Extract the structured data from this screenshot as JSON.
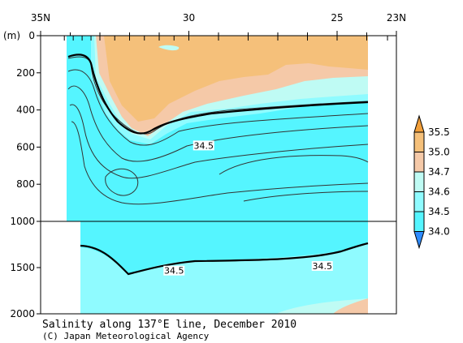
{
  "chart_data": {
    "type": "heatmap",
    "title": "Salinity along 137°E line, December 2010",
    "credit": "(C) Japan Meteorological Agency",
    "x_axis": {
      "range_deg_n": [
        35,
        23
      ],
      "tick_labels": [
        {
          "value": 35,
          "label": "35N"
        },
        {
          "value": 30,
          "label": "30"
        },
        {
          "value": 25,
          "label": "25"
        },
        {
          "value": 23,
          "label": "23N"
        }
      ]
    },
    "y_axis": {
      "unit_label": "(m)",
      "upper_panel_range_m": [
        0,
        1000
      ],
      "lower_panel_range_m": [
        1000,
        2000
      ],
      "tick_labels": [
        {
          "value": 0,
          "label": "0"
        },
        {
          "value": 200,
          "label": "200"
        },
        {
          "value": 400,
          "label": "400"
        },
        {
          "value": 600,
          "label": "600"
        },
        {
          "value": 800,
          "label": "800"
        },
        {
          "value": 1000,
          "label": "1000"
        },
        {
          "value": 1500,
          "label": "1500"
        },
        {
          "value": 2000,
          "label": "2000"
        }
      ]
    },
    "colorbar": {
      "levels": [
        "34.0",
        "34.5",
        "34.6",
        "34.7",
        "35.0",
        "35.5"
      ],
      "bands": [
        {
          "range": "< 34.0",
          "color": "#2f8cff"
        },
        {
          "range": "34.0-34.5",
          "color": "#55f5ff"
        },
        {
          "range": "34.5-34.6",
          "color": "#8ffbff"
        },
        {
          "range": "34.6-34.7",
          "color": "#bffbf4"
        },
        {
          "range": "34.7-35.0",
          "color": "#f5c9a8"
        },
        {
          "range": "35.0-35.5",
          "color": "#f5c07a"
        },
        {
          "range": "> 35.5",
          "color": "#f29f3a"
        }
      ]
    },
    "contour_labels": [
      {
        "value": "34.5",
        "lat": 29.5,
        "depth_m": 600
      },
      {
        "value": "34.5",
        "lat": 30.5,
        "depth_m": 1550
      },
      {
        "value": "34.5",
        "lat": 25.5,
        "depth_m": 1500
      }
    ],
    "station_lats": [
      34.2,
      33.9,
      33.6,
      33.3,
      33.0,
      32.5,
      32.0,
      31.5,
      31.0,
      30.5,
      30.0,
      29.0,
      28.0,
      27.0,
      26.0,
      25.0,
      24.0,
      23.3
    ]
  }
}
